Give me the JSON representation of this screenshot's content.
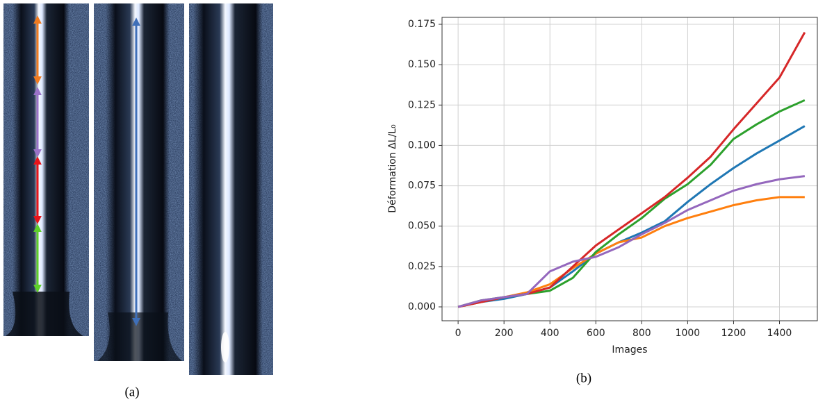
{
  "captions": [
    "(a)",
    "(b)"
  ],
  "chart_data": {
    "type": "line",
    "xlabel": "Images",
    "ylabel": "Déformation ΔL/L₀",
    "x": [
      0,
      100,
      200,
      300,
      400,
      500,
      600,
      700,
      800,
      900,
      1000,
      1100,
      1200,
      1300,
      1400,
      1510
    ],
    "series": [
      {
        "color": "#1f77b4",
        "values": [
          0,
          0.003,
          0.005,
          0.008,
          0.012,
          0.022,
          0.033,
          0.04,
          0.046,
          0.053,
          0.065,
          0.076,
          0.086,
          0.095,
          0.103,
          0.112
        ]
      },
      {
        "color": "#ff7f0e",
        "values": [
          0,
          0.003,
          0.006,
          0.009,
          0.014,
          0.024,
          0.033,
          0.04,
          0.043,
          0.05,
          0.055,
          0.059,
          0.063,
          0.066,
          0.068,
          0.068
        ]
      },
      {
        "color": "#2ca02c",
        "values": [
          0,
          0.004,
          0.006,
          0.008,
          0.01,
          0.018,
          0.034,
          0.045,
          0.055,
          0.067,
          0.076,
          0.088,
          0.104,
          0.113,
          0.121,
          0.128
        ]
      },
      {
        "color": "#d62728",
        "values": [
          0,
          0.003,
          0.006,
          0.008,
          0.012,
          0.025,
          0.038,
          0.048,
          0.058,
          0.068,
          0.08,
          0.093,
          0.11,
          0.126,
          0.142,
          0.17
        ]
      },
      {
        "color": "#9467bd",
        "values": [
          0,
          0.004,
          0.006,
          0.008,
          0.022,
          0.028,
          0.031,
          0.037,
          0.045,
          0.052,
          0.06,
          0.066,
          0.072,
          0.076,
          0.079,
          0.081
        ]
      }
    ],
    "xlim": [
      -70,
      1565
    ],
    "ylim": [
      -0.0086,
      0.1793
    ],
    "xticks": [
      0,
      200,
      400,
      600,
      800,
      1000,
      1200,
      1400
    ],
    "yticks": [
      {
        "value": 0,
        "label": "0.000"
      },
      {
        "value": 0.025,
        "label": "0.025"
      },
      {
        "value": 0.05,
        "label": "0.050"
      },
      {
        "value": 0.075,
        "label": "0.075"
      },
      {
        "value": 0.1,
        "label": "0.100"
      },
      {
        "value": 0.125,
        "label": "0.125"
      },
      {
        "value": 0.15,
        "label": "0.150"
      },
      {
        "value": 0.175,
        "label": "0.175"
      }
    ],
    "grid": true
  }
}
